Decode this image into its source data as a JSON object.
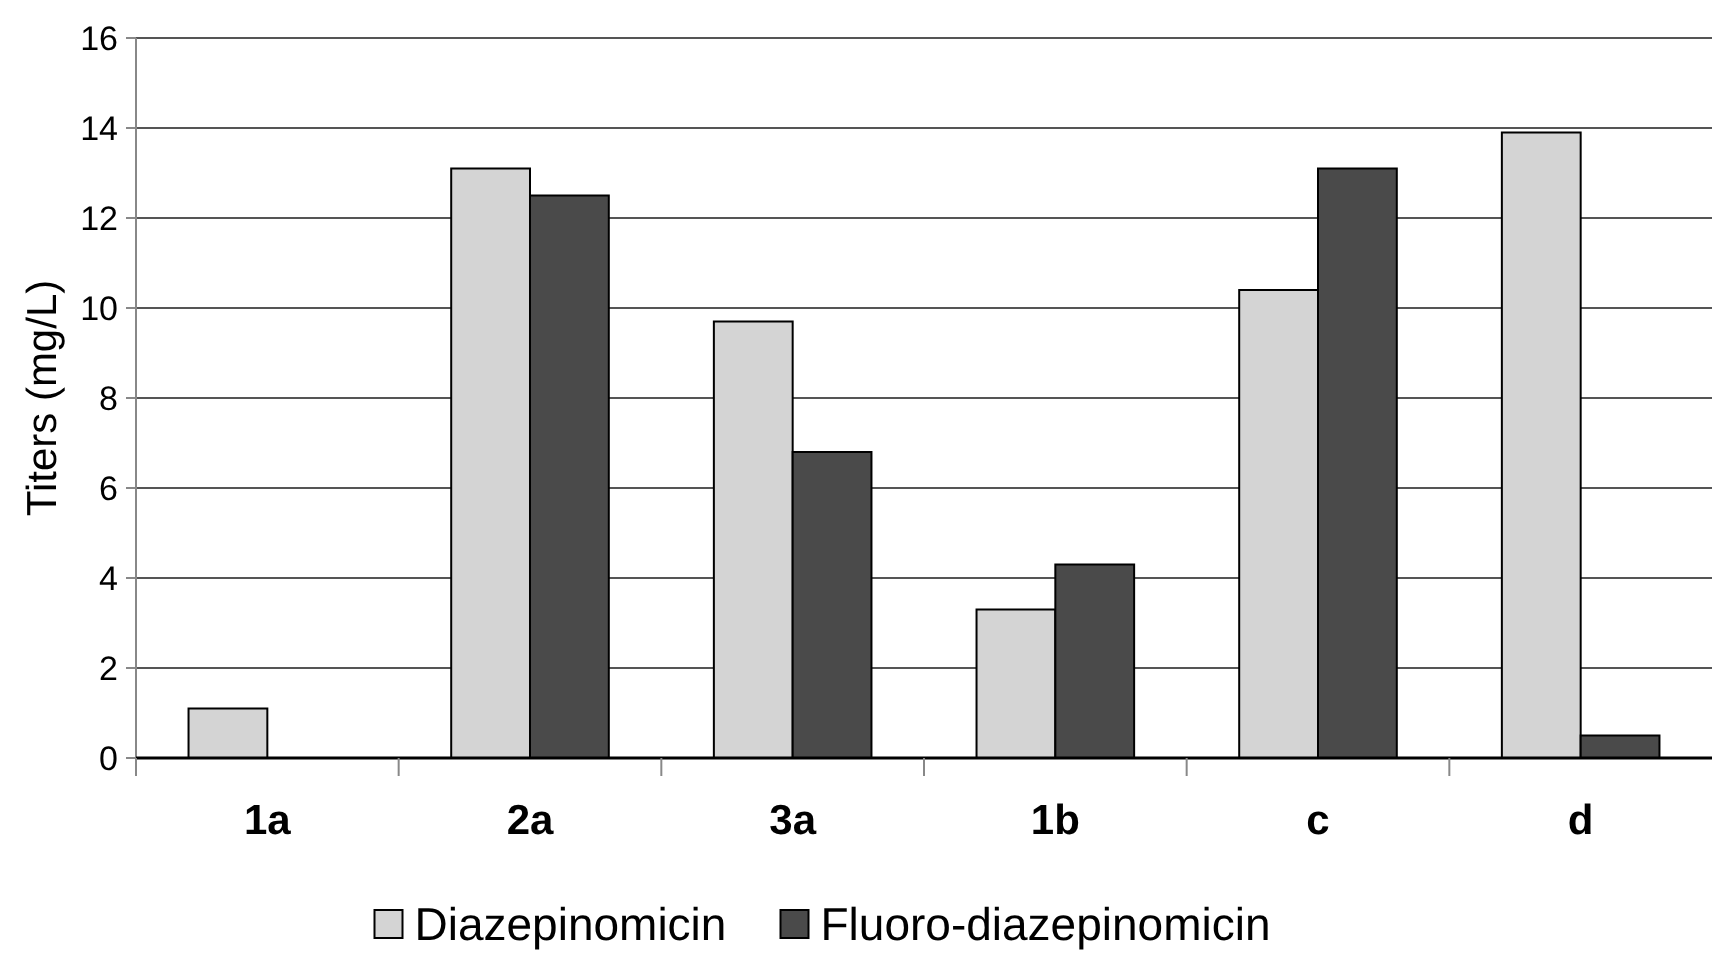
{
  "chart_data": {
    "type": "bar",
    "ylabel": "Titers (mg/L)",
    "categories": [
      "1a",
      "2a",
      "3a",
      "1b",
      "c",
      "d"
    ],
    "series": [
      {
        "name": "Diazepinomicin",
        "color": "#d4d4d4",
        "values": [
          1.1,
          13.1,
          9.7,
          3.3,
          10.4,
          13.9
        ]
      },
      {
        "name": "Fluoro-diazepinomicin",
        "color": "#4a4a4a",
        "values": [
          0,
          12.5,
          6.8,
          4.3,
          13.1,
          0.5
        ]
      }
    ],
    "ylim": [
      0,
      16
    ],
    "yticks": [
      0,
      2,
      4,
      6,
      8,
      10,
      12,
      14,
      16
    ],
    "grid": "y",
    "legend": "bottom"
  }
}
